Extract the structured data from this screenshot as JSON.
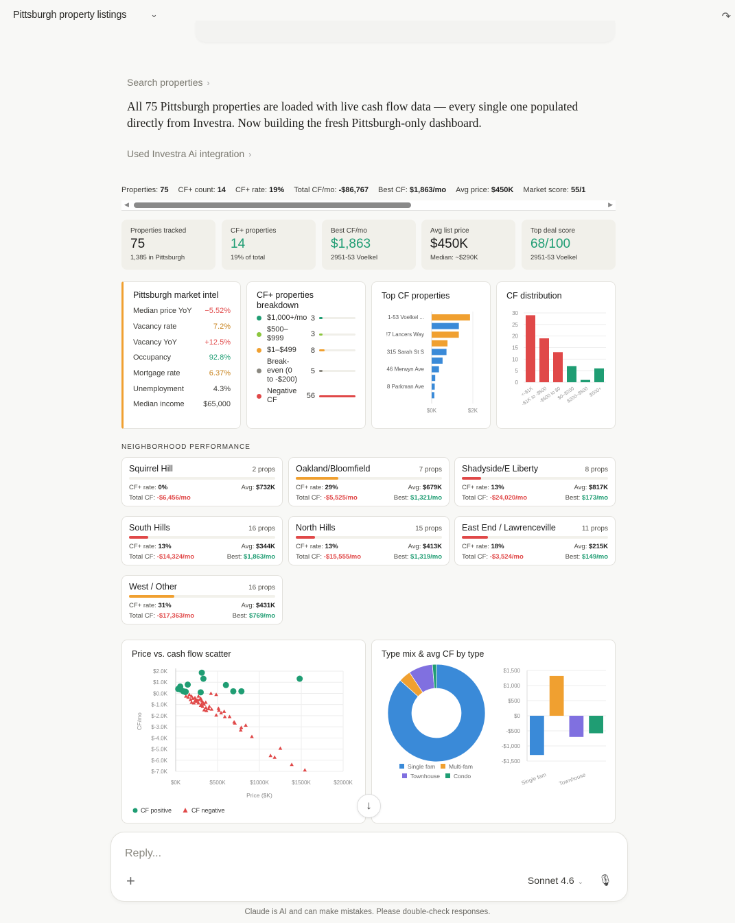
{
  "header": {
    "title": "Pittsburgh property listings"
  },
  "links": {
    "search": "Search properties",
    "integration": "Used Investra Ai integration"
  },
  "message": "All 75 Pittsburgh properties are loaded with live cash flow data — every single one populated directly from Investra. Now building the fresh Pittsburgh-only dashboard.",
  "stats": [
    {
      "label": "Properties:",
      "value": "75"
    },
    {
      "label": "CF+ count:",
      "value": "14"
    },
    {
      "label": "CF+ rate:",
      "value": "19%"
    },
    {
      "label": "Total CF/mo:",
      "value": "-$86,767"
    },
    {
      "label": "Best CF:",
      "value": "$1,863/mo"
    },
    {
      "label": "Avg price:",
      "value": "$450K"
    },
    {
      "label": "Market score:",
      "value": "55/1"
    }
  ],
  "kpis": [
    {
      "label": "Properties tracked",
      "value": "75",
      "sub": "1,385 in Pittsburgh",
      "green": false
    },
    {
      "label": "CF+ properties",
      "value": "14",
      "sub": "19% of total",
      "green": true
    },
    {
      "label": "Best CF/mo",
      "value": "$1,863",
      "sub": "2951-53 Voelkel",
      "green": true
    },
    {
      "label": "Avg list price",
      "value": "$450K",
      "sub": "Median: ~$290K",
      "green": false
    },
    {
      "label": "Top deal score",
      "value": "68/100",
      "sub": "2951-53 Voelkel",
      "green": true
    }
  ],
  "market_intel": {
    "title": "Pittsburgh market intel",
    "rows": [
      {
        "label": "Median price YoY",
        "value": "−5.52%",
        "color": "#e04848"
      },
      {
        "label": "Vacancy rate",
        "value": "7.2%",
        "color": "#c7821c"
      },
      {
        "label": "Vacancy YoY",
        "value": "+12.5%",
        "color": "#e04848"
      },
      {
        "label": "Occupancy",
        "value": "92.8%",
        "color": "#1f9d73"
      },
      {
        "label": "Mortgage rate",
        "value": "6.37%",
        "color": "#c7821c"
      },
      {
        "label": "Unemployment",
        "value": "4.3%",
        "color": "#3a3935"
      },
      {
        "label": "Median income",
        "value": "$65,000",
        "color": "#3a3935"
      }
    ]
  },
  "breakdown": {
    "title": "CF+ properties breakdown",
    "items": [
      {
        "label": "$1,000+/mo",
        "count": 3,
        "color": "#1f9d73"
      },
      {
        "label": "$500–$999",
        "count": 3,
        "color": "#8cc63f"
      },
      {
        "label": "$1–$499",
        "count": 8,
        "color": "#f0a030"
      },
      {
        "label": "Break-even (0 to -$200)",
        "count": 5,
        "color": "#8a8880"
      },
      {
        "label": "Negative CF",
        "count": 56,
        "color": "#e04848"
      }
    ]
  },
  "chart_data": [
    {
      "type": "bar",
      "orientation": "horizontal",
      "title": "Top CF properties",
      "categories": [
        "1-53 Voelkel ...",
        "",
        "!7 Lancers Way",
        "",
        "315 Sarah St S",
        "",
        "46 Merwyn Ave",
        "",
        "8 Parkman Ave",
        ""
      ],
      "values": [
        1863,
        1321,
        1319,
        769,
        720,
        530,
        355,
        173,
        149,
        130
      ],
      "colors": [
        "#f0a030",
        "#3a8ad8",
        "#f0a030",
        "#f0a030",
        "#3a8ad8",
        "#3a8ad8",
        "#3a8ad8",
        "#3a8ad8",
        "#3a8ad8",
        "#3a8ad8"
      ],
      "xticks": [
        "$0K",
        "$2K"
      ],
      "xlim": [
        0,
        2000
      ]
    },
    {
      "type": "bar",
      "title": "CF distribution",
      "categories": [
        "<-$1K",
        "-$1K to -$500",
        "-$500 to $0",
        "$0–$200",
        "$200–$500",
        "$500+"
      ],
      "values": [
        29,
        19,
        13,
        7,
        1,
        6
      ],
      "colors": [
        "#e04848",
        "#e04848",
        "#e04848",
        "#1f9d73",
        "#1f9d73",
        "#1f9d73"
      ],
      "yticks": [
        "0",
        "5",
        "10",
        "15",
        "20",
        "25",
        "30"
      ],
      "ylim": [
        0,
        30
      ],
      "grid": true
    },
    {
      "type": "scatter",
      "title": "Price vs. cash flow scatter",
      "xlabel": "Price ($K)",
      "ylabel": "CF/mo",
      "xlim": [
        0,
        2000
      ],
      "ylim": [
        -7000,
        2000
      ],
      "xticks": [
        "$0K",
        "$500K",
        "$1000K",
        "$1500K",
        "$2000K"
      ],
      "yticks": [
        "$2.0K",
        "$1.0K",
        "$0.0K",
        "$-1.0K",
        "$-2.0K",
        "$-3.0K",
        "$-4.0K",
        "$-5.0K",
        "$-6.0K",
        "$-7.0K"
      ],
      "grid": true,
      "legend": "bottom-left",
      "series": [
        {
          "name": "CF positive",
          "marker": "circle",
          "color": "#1f9d73",
          "points": [
            [
              312,
              1863
            ],
            [
              331,
              1319
            ],
            [
              144,
              790
            ],
            [
              54,
              620
            ],
            [
              30,
              400
            ],
            [
              90,
              200
            ],
            [
              114,
              130
            ],
            [
              299,
              100
            ],
            [
              600,
              750
            ],
            [
              688,
              190
            ],
            [
              785,
              190
            ],
            [
              1481,
              1321
            ],
            [
              120,
              150
            ],
            [
              60,
              350
            ]
          ]
        },
        {
          "name": "CF negative",
          "marker": "triangle",
          "color": "#e04848",
          "points": [
            [
              421,
              -10
            ],
            [
              484,
              -110
            ],
            [
              122,
              -260
            ],
            [
              163,
              -110
            ],
            [
              190,
              -260
            ],
            [
              204,
              -460
            ],
            [
              272,
              -260
            ],
            [
              299,
              -460
            ],
            [
              312,
              -670
            ],
            [
              326,
              -810
            ],
            [
              340,
              -980
            ],
            [
              359,
              -810
            ],
            [
              190,
              -810
            ],
            [
              231,
              -670
            ],
            [
              245,
              -570
            ],
            [
              272,
              -870
            ],
            [
              299,
              -1080
            ],
            [
              340,
              -1490
            ],
            [
              367,
              -1550
            ],
            [
              402,
              -1180
            ],
            [
              394,
              -1390
            ],
            [
              429,
              -1430
            ],
            [
              511,
              -1350
            ],
            [
              516,
              -1530
            ],
            [
              543,
              -1760
            ],
            [
              579,
              -1630
            ],
            [
              484,
              -1960
            ],
            [
              587,
              -2100
            ],
            [
              644,
              -2100
            ],
            [
              698,
              -2580
            ],
            [
              707,
              -2680
            ],
            [
              837,
              -2870
            ],
            [
              783,
              -3070
            ],
            [
              777,
              -3300
            ],
            [
              910,
              -3890
            ],
            [
              1250,
              -4940
            ],
            [
              1133,
              -5600
            ],
            [
              1182,
              -5750
            ],
            [
              1386,
              -6400
            ],
            [
              1543,
              -6890
            ],
            [
              149,
              -360
            ],
            [
              177,
              -570
            ],
            [
              217,
              -870
            ],
            [
              250,
              -730
            ],
            [
              291,
              -530
            ],
            [
              321,
              -1180
            ],
            [
              361,
              -1290
            ],
            [
              230,
              -400
            ],
            [
              265,
              -600
            ],
            [
              310,
              -950
            ]
          ]
        }
      ]
    },
    {
      "type": "pie",
      "title": "Type mix & avg CF by type",
      "categories": [
        "Single fam",
        "Multi-fam",
        "Townhouse",
        "Condo"
      ],
      "values": [
        65,
        3,
        6,
        1
      ],
      "colors": [
        "#3a8ad8",
        "#f0a030",
        "#8070e0",
        "#1f9d73"
      ],
      "legend": "bottom"
    },
    {
      "type": "bar",
      "categories": [
        "Single fam",
        "Multi-fam",
        "Townhouse",
        "Condo"
      ],
      "xticks": [
        "Single fam",
        "",
        "Townhouse",
        ""
      ],
      "values": [
        -1300,
        1320,
        -700,
        -580
      ],
      "colors": [
        "#3a8ad8",
        "#f0a030",
        "#8070e0",
        "#1f9d73"
      ],
      "yticks": [
        "$1,500",
        "$1,000",
        "$500",
        "$0",
        "-$500",
        "-$1,000",
        "-$1,500"
      ],
      "ylim": [
        -1500,
        1500
      ],
      "grid": true
    }
  ],
  "neighborhoods": {
    "title": "NEIGHBORHOOD PERFORMANCE",
    "cf_rate_label": "CF+ rate:",
    "avg_label": "Avg:",
    "total_label": "Total CF:",
    "best_label": "Best:",
    "items": [
      {
        "name": "Squirrel Hill",
        "props": "2 props",
        "cf_rate": "0%",
        "rate": 0,
        "avg": "$732K",
        "total": "-$6,456/mo",
        "best": "",
        "color": "#e04848"
      },
      {
        "name": "Oakland/Bloomfield",
        "props": "7 props",
        "cf_rate": "29%",
        "rate": 29,
        "avg": "$679K",
        "total": "-$5,525/mo",
        "best": "$1,321/mo",
        "color": "#f0a030"
      },
      {
        "name": "Shadyside/E Liberty",
        "props": "8 props",
        "cf_rate": "13%",
        "rate": 13,
        "avg": "$817K",
        "total": "-$24,020/mo",
        "best": "$173/mo",
        "color": "#e04848"
      },
      {
        "name": "South Hills",
        "props": "16 props",
        "cf_rate": "13%",
        "rate": 13,
        "avg": "$344K",
        "total": "-$14,324/mo",
        "best": "$1,863/mo",
        "color": "#e04848"
      },
      {
        "name": "North Hills",
        "props": "15 props",
        "cf_rate": "13%",
        "rate": 13,
        "avg": "$413K",
        "total": "-$15,555/mo",
        "best": "$1,319/mo",
        "color": "#e04848"
      },
      {
        "name": "East End / Lawrenceville",
        "props": "11 props",
        "cf_rate": "18%",
        "rate": 18,
        "avg": "$215K",
        "total": "-$3,524/mo",
        "best": "$149/mo",
        "color": "#e04848"
      },
      {
        "name": "West / Other",
        "props": "16 props",
        "cf_rate": "31%",
        "rate": 31,
        "avg": "$431K",
        "total": "-$17,363/mo",
        "best": "$769/mo",
        "color": "#f0a030"
      }
    ]
  },
  "composer": {
    "placeholder": "Reply...",
    "model": "Sonnet 4.6"
  },
  "disclaimer": "Claude is AI and can make mistakes. Please double-check responses."
}
